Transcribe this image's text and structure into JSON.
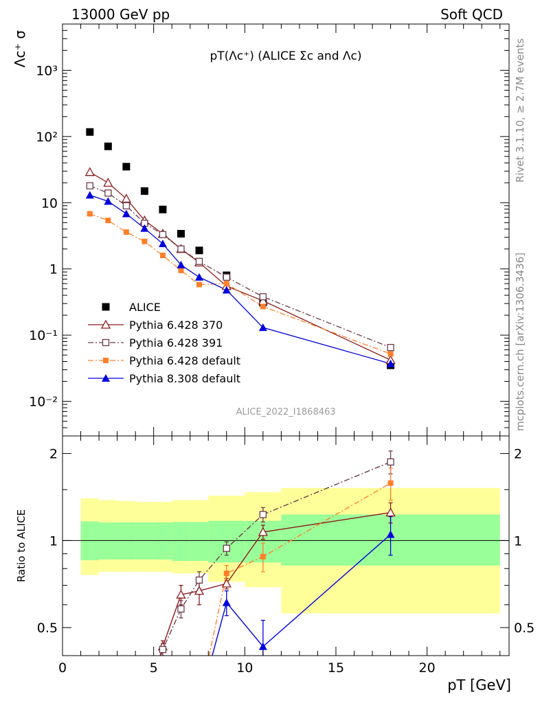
{
  "header": {
    "left": "13000 GeV pp",
    "right": "Soft QCD"
  },
  "side_labels": {
    "rivet": "Rivet 3.1.10, ≥ 2.7M events",
    "mcplots": "mcplots.cern.ch [arXiv:1306.3436]"
  },
  "chart_data": [
    {
      "type": "scatter",
      "title": "pT(Λc⁺) (ALICE Σc and Λc)",
      "watermark": "ALICE_2022_I1868463",
      "ylabel": "Λc⁺ σ",
      "xlabel": "pT [GeV]",
      "yscale": "log",
      "xlim": [
        0,
        24.5
      ],
      "ylim": [
        0.003,
        5000
      ],
      "y_ticks": [
        "10⁻²",
        "10⁻¹",
        "1",
        "10",
        "10²",
        "10³"
      ],
      "x_ticks": [
        "0",
        "5",
        "10",
        "15",
        "20"
      ],
      "legend_position": "bottom-left",
      "series": [
        {
          "name": "ALICE",
          "color": "#000000",
          "marker": "filled-square",
          "line": "none",
          "x": [
            1.5,
            2.5,
            3.5,
            4.5,
            5.5,
            6.5,
            7.5,
            9.0,
            11.0,
            18.0
          ],
          "y": [
            117,
            71,
            35,
            15,
            7.9,
            3.4,
            1.9,
            0.8,
            0.31,
            0.035
          ]
        },
        {
          "name": "Pythia 6.428 370",
          "color": "#8b1a1a",
          "marker": "open-triangle",
          "line": "solid",
          "x": [
            1.5,
            2.5,
            3.5,
            4.5,
            5.5,
            6.5,
            7.5,
            9.0,
            11.0,
            18.0
          ],
          "y": [
            29,
            20,
            11.5,
            5.4,
            3.4,
            2.0,
            1.25,
            0.55,
            0.33,
            0.042
          ]
        },
        {
          "name": "Pythia 6.428 391",
          "color": "#6b3a4a",
          "marker": "open-square",
          "line": "dashdot",
          "x": [
            1.5,
            2.5,
            3.5,
            4.5,
            5.5,
            6.5,
            7.5,
            9.0,
            11.0,
            18.0
          ],
          "y": [
            18,
            14,
            9,
            4.9,
            3.3,
            2.0,
            1.3,
            0.75,
            0.38,
            0.065
          ]
        },
        {
          "name": "Pythia 6.428 default",
          "color": "#ff7f2a",
          "marker": "filled-small-square",
          "line": "dashdot",
          "x": [
            1.5,
            2.5,
            3.5,
            4.5,
            5.5,
            6.5,
            7.5,
            9.0,
            11.0,
            18.0
          ],
          "y": [
            6.8,
            5.4,
            3.6,
            2.6,
            1.6,
            0.95,
            0.58,
            0.6,
            0.27,
            0.052
          ]
        },
        {
          "name": "Pythia 8.308 default",
          "color": "#0000dd",
          "marker": "filled-triangle",
          "line": "solid",
          "x": [
            1.5,
            2.5,
            3.5,
            4.5,
            5.5,
            6.5,
            7.5,
            9.0,
            11.0,
            18.0
          ],
          "y": [
            13,
            10.5,
            6.8,
            4.1,
            2.4,
            1.15,
            0.75,
            0.48,
            0.13,
            0.037
          ]
        }
      ]
    },
    {
      "type": "scatter",
      "ylabel": "Ratio to ALICE",
      "xlabel": "pT [GeV]",
      "xlim": [
        0,
        24.5
      ],
      "ylim": [
        0.4,
        2.3
      ],
      "y_ticks": [
        "0.5",
        "1",
        "2"
      ],
      "reference_line": 1,
      "bands": {
        "bins": [
          [
            1,
            2
          ],
          [
            2,
            3
          ],
          [
            3,
            4
          ],
          [
            4,
            5
          ],
          [
            5,
            6
          ],
          [
            6,
            7
          ],
          [
            7,
            8
          ],
          [
            8,
            10
          ],
          [
            10,
            12
          ],
          [
            12,
            24
          ]
        ],
        "inner": [
          [
            0.855,
            1.165
          ],
          [
            0.86,
            1.155
          ],
          [
            0.86,
            1.155
          ],
          [
            0.86,
            1.155
          ],
          [
            0.86,
            1.155
          ],
          [
            0.85,
            1.16
          ],
          [
            0.85,
            1.16
          ],
          [
            0.84,
            1.17
          ],
          [
            0.84,
            1.17
          ],
          [
            0.82,
            1.23
          ]
        ],
        "outer": [
          [
            0.76,
            1.4
          ],
          [
            0.78,
            1.38
          ],
          [
            0.78,
            1.37
          ],
          [
            0.78,
            1.36
          ],
          [
            0.78,
            1.36
          ],
          [
            0.77,
            1.38
          ],
          [
            0.77,
            1.38
          ],
          [
            0.72,
            1.43
          ],
          [
            0.69,
            1.47
          ],
          [
            0.56,
            1.52
          ]
        ],
        "inner_color": "#99ff99",
        "outer_color": "#ffff99"
      },
      "series": [
        {
          "name": "Pythia 6.428 370",
          "color": "#8b1a1a",
          "marker": "open-triangle",
          "line": "solid",
          "x": [
            5.5,
            6.5,
            7.5,
            9.0,
            11.0,
            18.0
          ],
          "y": [
            0.43,
            0.65,
            0.67,
            0.71,
            1.07,
            1.25
          ],
          "err": [
            0.02,
            0.05,
            0.07,
            0.03,
            0.06,
            0.1
          ]
        },
        {
          "name": "Pythia 6.428 391",
          "color": "#6b3a4a",
          "marker": "open-square",
          "line": "dashdot",
          "x": [
            5.5,
            6.5,
            7.5,
            9.0,
            11.0,
            18.0
          ],
          "y": [
            0.42,
            0.58,
            0.73,
            0.94,
            1.23,
            1.87
          ],
          "err": [
            0.02,
            0.04,
            0.05,
            0.05,
            0.07,
            0.17
          ]
        },
        {
          "name": "Pythia 6.428 default",
          "color": "#ff7f2a",
          "marker": "filled-small-square",
          "line": "dashdot",
          "x": [
            9.0,
            11.0,
            18.0
          ],
          "y": [
            0.77,
            0.88,
            1.58
          ],
          "err": [
            0.05,
            0.1,
            0.2
          ]
        },
        {
          "name": "Pythia 8.308 default",
          "color": "#0000dd",
          "marker": "filled-triangle",
          "line": "solid",
          "x": [
            9.0,
            11.0,
            18.0
          ],
          "y": [
            0.61,
            0.43,
            1.05
          ],
          "err": [
            0.06,
            0.1,
            0.16
          ]
        }
      ]
    }
  ]
}
